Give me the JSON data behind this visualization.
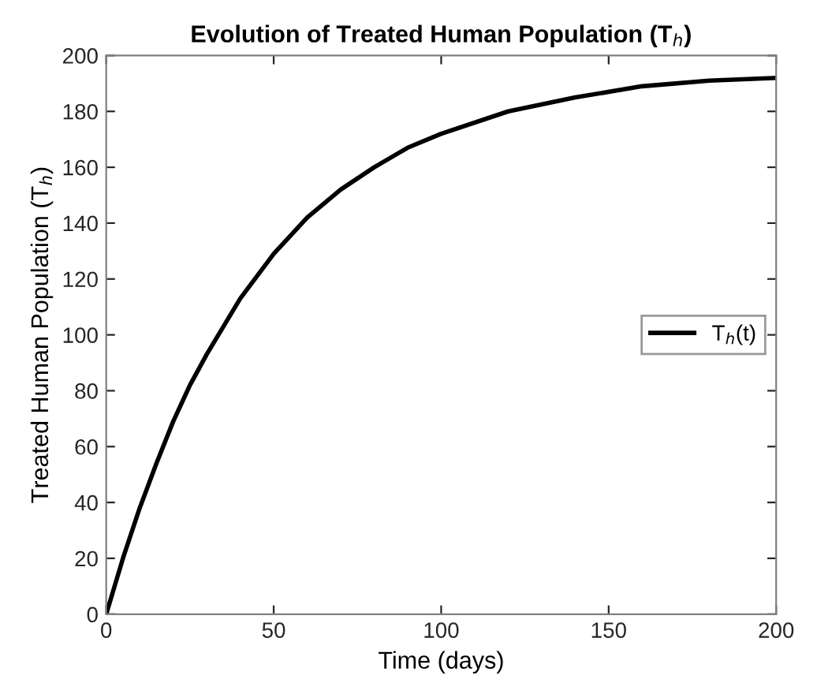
{
  "chart_data": {
    "type": "line",
    "title": "Evolution of Treated Human Population (T$_{h}$)",
    "xlabel": "Time (days)",
    "ylabel": "Treated Human Population (T$_{h}$)",
    "x": [
      0,
      5,
      10,
      15,
      20,
      25,
      30,
      40,
      50,
      60,
      70,
      80,
      90,
      100,
      120,
      140,
      160,
      180,
      200
    ],
    "series": [
      {
        "name": "T$_{h}$(t)",
        "color": "#000000",
        "values": [
          0,
          20,
          38,
          54,
          69,
          82,
          93,
          113,
          129,
          142,
          152,
          160,
          167,
          172,
          180,
          185,
          189,
          191,
          192
        ]
      }
    ],
    "xlim": [
      0,
      200
    ],
    "ylim": [
      0,
      200
    ],
    "xticks": [
      0,
      50,
      100,
      150,
      200
    ],
    "yticks": [
      0,
      20,
      40,
      60,
      80,
      100,
      120,
      140,
      160,
      180,
      200
    ],
    "grid": false,
    "legend": "right",
    "marker": "none",
    "line_style": "solid"
  }
}
